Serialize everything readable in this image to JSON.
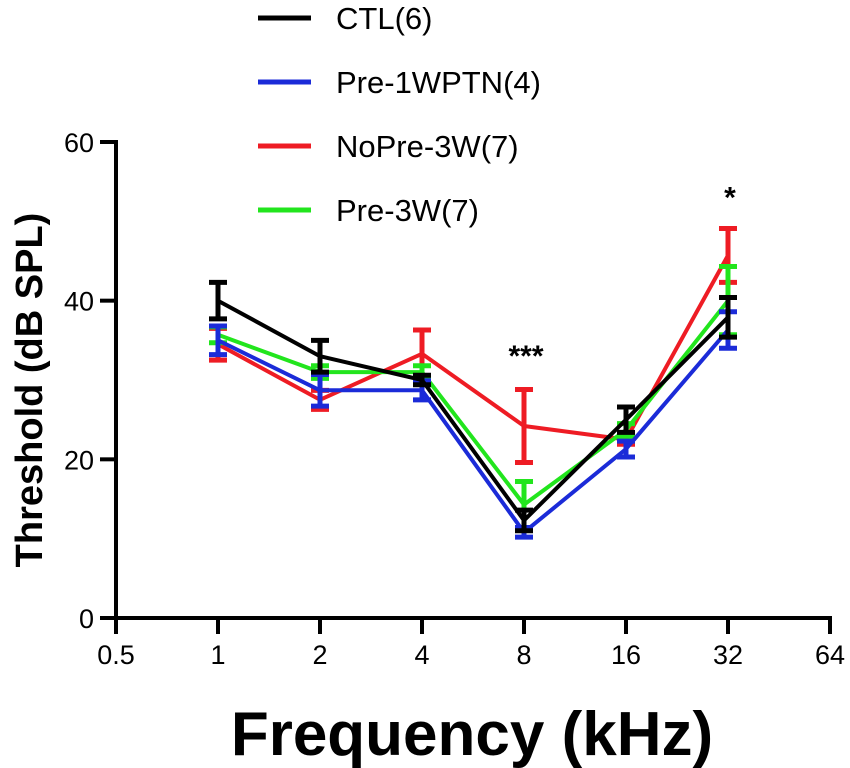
{
  "chart_data": {
    "type": "line",
    "xlabel": "Frequency (kHz)",
    "ylabel": "Threshold (dB SPL)",
    "x_scale": "log2",
    "x_ticks": [
      0.5,
      1,
      2,
      4,
      8,
      16,
      32,
      64
    ],
    "x_tick_labels": [
      "0.5",
      "1",
      "2",
      "4",
      "8",
      "16",
      "32",
      "64"
    ],
    "x": [
      1,
      2,
      4,
      8,
      16,
      32
    ],
    "ylim": [
      0,
      60
    ],
    "y_ticks": [
      0,
      20,
      40,
      60
    ],
    "y_tick_labels": [
      "0",
      "20",
      "40",
      "60"
    ],
    "grid": false,
    "legend_position": "top-center",
    "series": [
      {
        "name": "NoPre-3W(7)",
        "color": "#ee1c24",
        "values": [
          34.5,
          27.5,
          33.3,
          24.2,
          22.5,
          45.7
        ],
        "errors": [
          2.0,
          1.2,
          3.0,
          4.6,
          0.6,
          3.4
        ]
      },
      {
        "name": "Pre-3W(7)",
        "color": "#22e51d",
        "values": [
          35.7,
          31.0,
          31.0,
          14.3,
          23.7,
          40.0
        ],
        "errors": [
          1.0,
          0.8,
          0.8,
          2.9,
          0.8,
          4.3
        ]
      },
      {
        "name": "Pre-1WPTN(4)",
        "color": "#1b2bd8",
        "values": [
          35.0,
          28.7,
          28.7,
          10.8,
          21.3,
          36.3
        ],
        "errors": [
          1.8,
          2.0,
          1.2,
          0.6,
          1.0,
          2.3
        ]
      },
      {
        "name": "CTL(6)",
        "color": "#000000",
        "values": [
          40.0,
          33.0,
          30.0,
          12.3,
          25.0,
          37.9
        ],
        "errors": [
          2.3,
          2.0,
          0.6,
          1.3,
          1.6,
          2.5
        ]
      }
    ],
    "legend_order": [
      "CTL(6)",
      "Pre-1WPTN(4)",
      "NoPre-3W(7)",
      "Pre-3W(7)"
    ],
    "annotations": [
      {
        "text": "***",
        "x": 8,
        "y": 33
      },
      {
        "text": "*",
        "x": 32,
        "y": 53
      }
    ]
  }
}
